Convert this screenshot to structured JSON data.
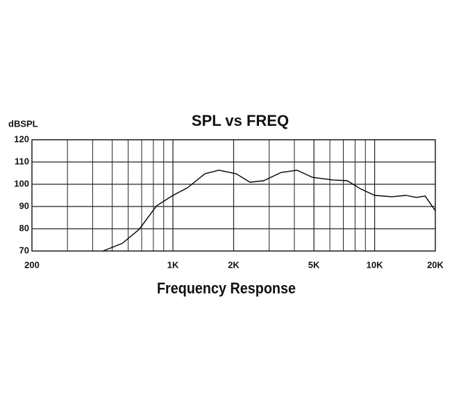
{
  "chart_data": {
    "type": "line",
    "title": "SPL vs FREQ",
    "x_label": "Frequency Response",
    "y_label": "dBSPL",
    "x": [
      450,
      560,
      680,
      830,
      1000,
      1180,
      1440,
      1690,
      2060,
      2410,
      2820,
      3440,
      4130,
      4920,
      6240,
      7310,
      8570,
      10000,
      12200,
      14300,
      16100,
      17800,
      20000
    ],
    "values": [
      70,
      73.4,
      79.7,
      90.3,
      95,
      98.4,
      104.7,
      106.3,
      104.7,
      100.9,
      101.6,
      105.3,
      106.3,
      103.1,
      101.9,
      101.6,
      97.8,
      95,
      94.4,
      95,
      94.1,
      94.7,
      88.1
    ],
    "color": "#000000",
    "xscale": "log",
    "xlim": [
      200,
      20000
    ],
    "xticks": [
      200,
      {
        "value": 1000,
        "label": "1K"
      },
      {
        "value": 2000,
        "label": "2K"
      },
      {
        "value": 5000,
        "label": "5K"
      },
      {
        "value": 10000,
        "label": "10K"
      },
      {
        "value": 20000,
        "label": "20K"
      }
    ],
    "ylim": [
      70,
      120
    ],
    "yticks": [
      70,
      80,
      90,
      100,
      110,
      120
    ],
    "grid": true
  }
}
